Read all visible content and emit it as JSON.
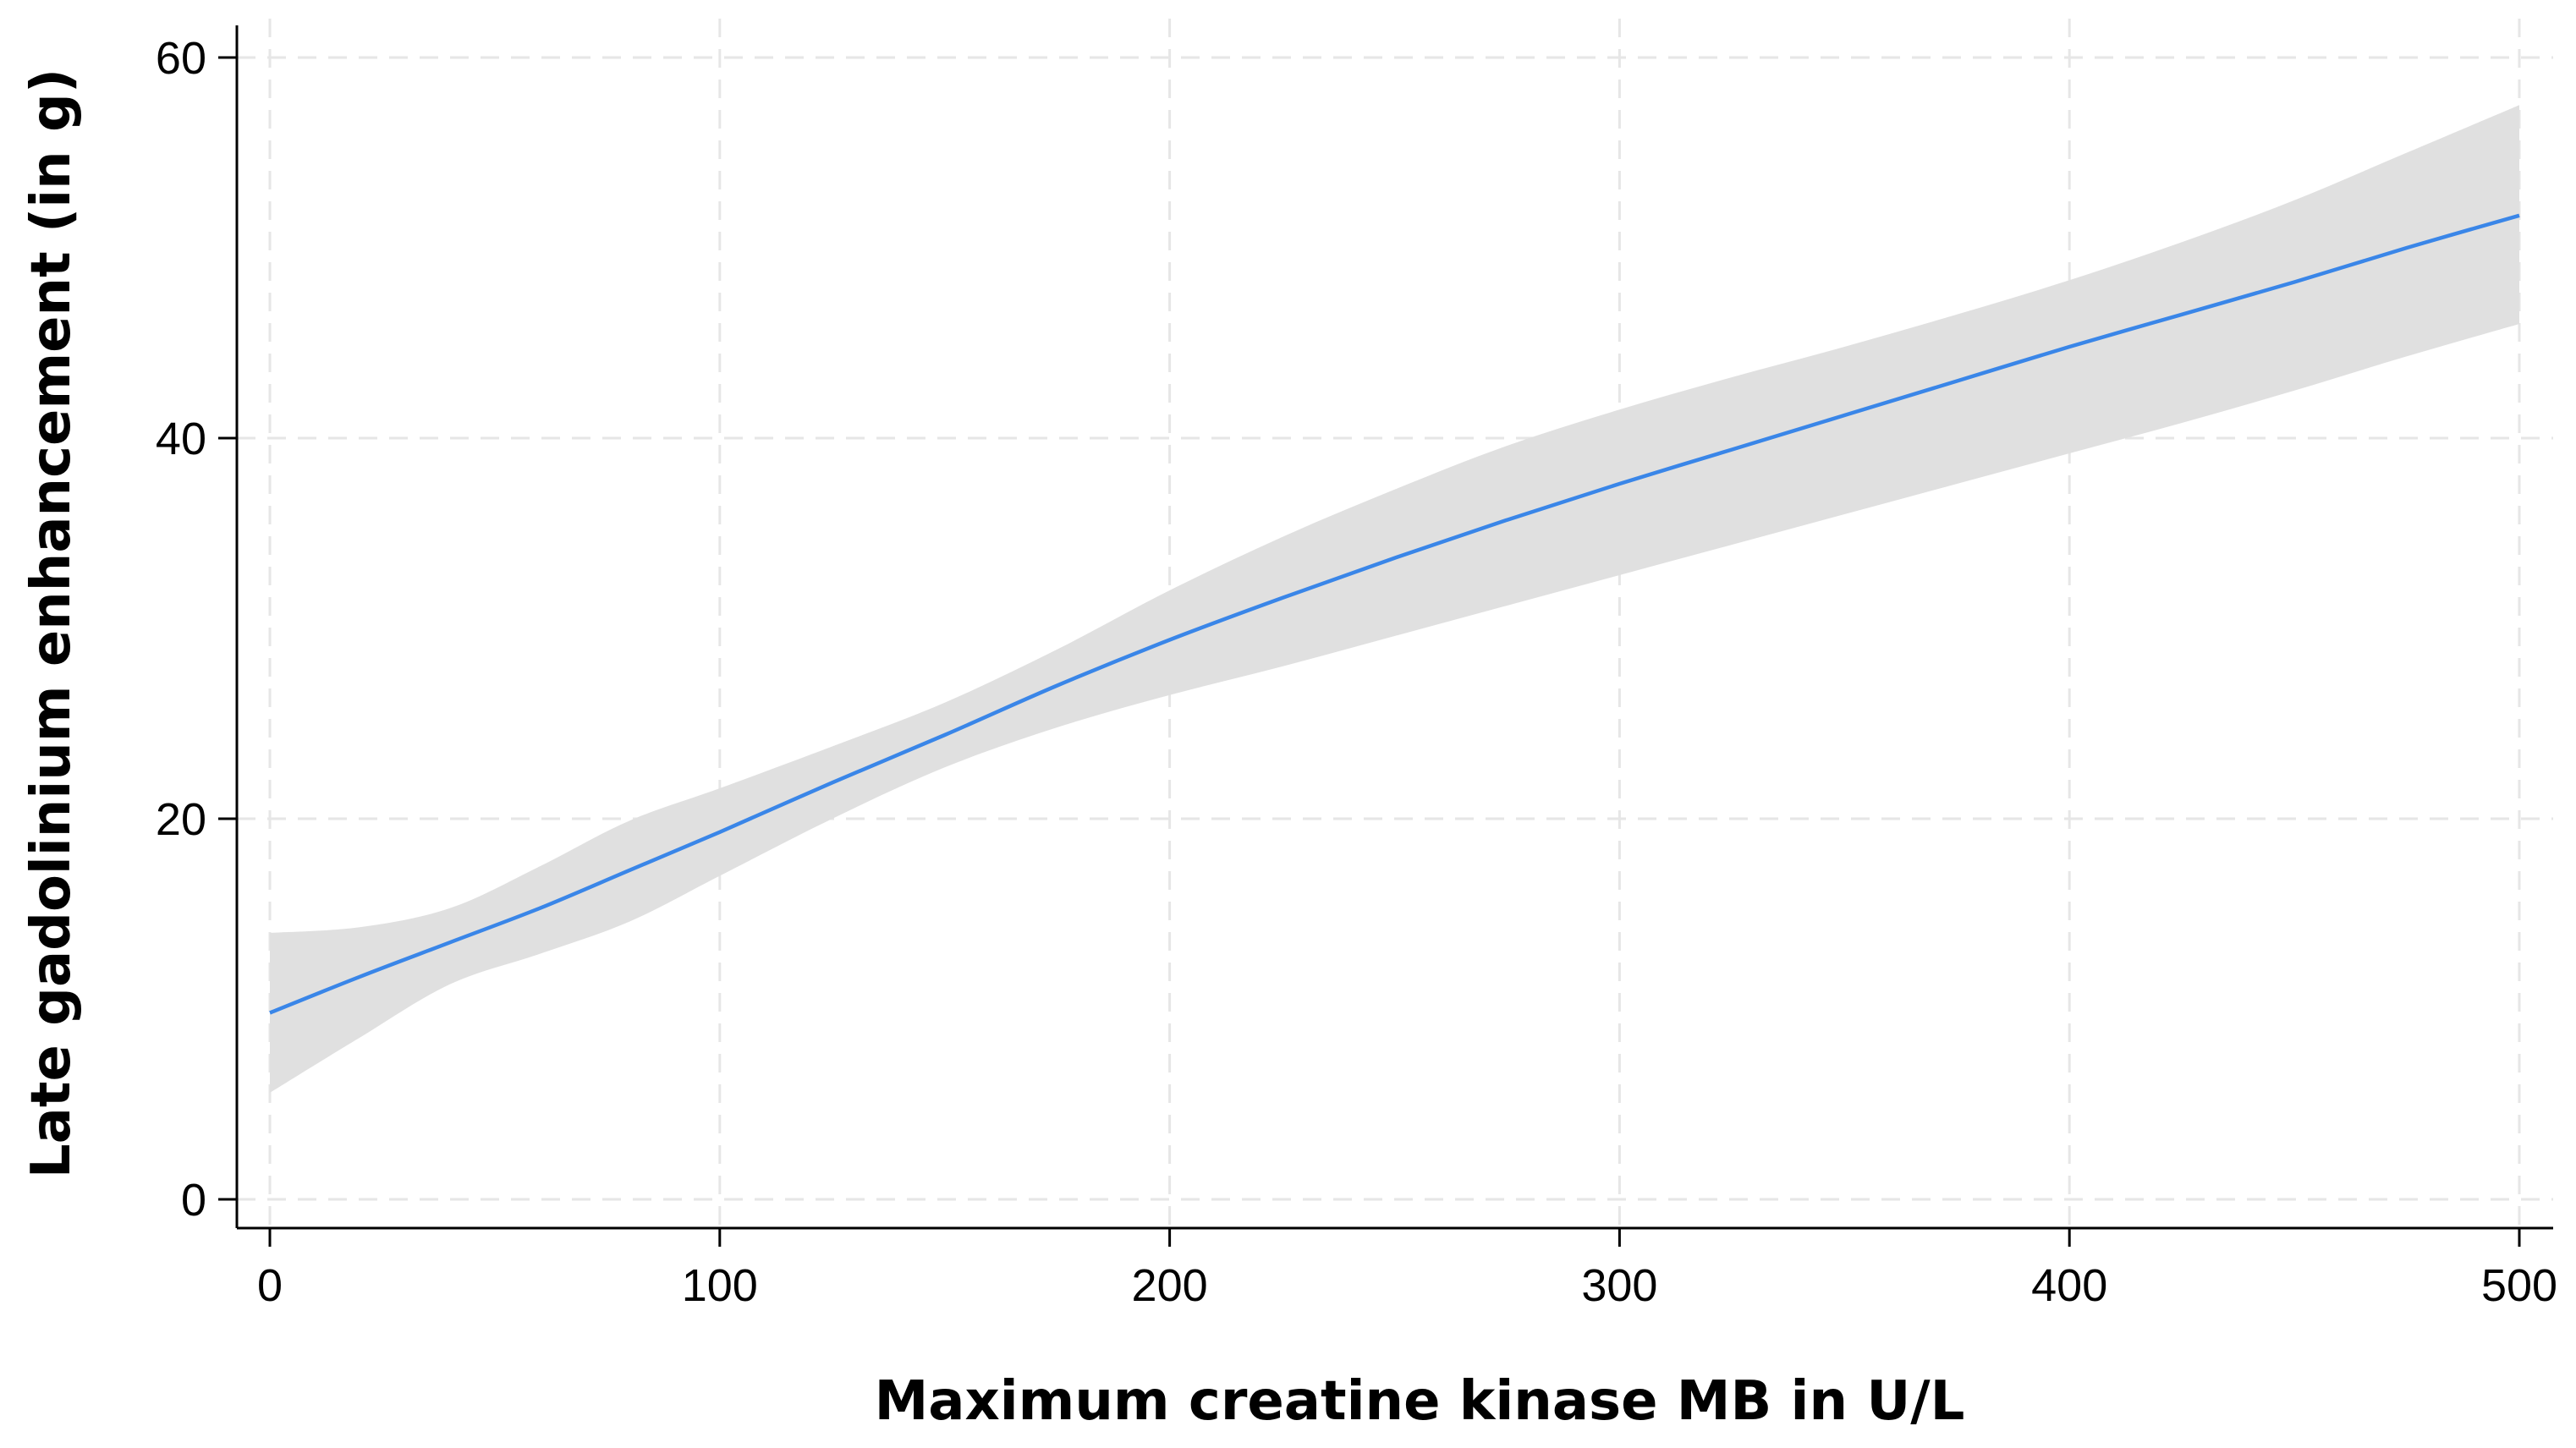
{
  "chart_data": {
    "type": "area",
    "title": "",
    "xlabel": "Maximum creatine kinase MB in U/L",
    "ylabel": "Late gadolinium enhancement (in g)",
    "xlim": [
      0,
      500
    ],
    "ylim": [
      0,
      60
    ],
    "xticks": [
      0,
      100,
      200,
      300,
      400,
      500
    ],
    "yticks": [
      0,
      20,
      40,
      60
    ],
    "grid": true,
    "legend": "none",
    "colors": {
      "line": "#3a86e8",
      "band": "#e0e0e0",
      "grid": "#e6e6e6",
      "axis": "#000000"
    },
    "series": [
      {
        "x": [
          0,
          20,
          40,
          60,
          80,
          100,
          125,
          150,
          175,
          200,
          225,
          250,
          275,
          300,
          325,
          350,
          375,
          400,
          425,
          450,
          475,
          500
        ],
        "fit": [
          9.8,
          11.7,
          13.5,
          15.3,
          17.3,
          19.3,
          21.9,
          24.4,
          27.0,
          29.4,
          31.6,
          33.7,
          35.7,
          37.6,
          39.4,
          41.2,
          43.0,
          44.8,
          46.5,
          48.2,
          50.0,
          51.7
        ],
        "lower": [
          5.6,
          8.5,
          11.3,
          12.9,
          14.6,
          17.0,
          20.0,
          22.7,
          24.8,
          26.5,
          28.0,
          29.6,
          31.2,
          32.8,
          34.4,
          36.0,
          37.6,
          39.2,
          40.8,
          42.5,
          44.3,
          46.0
        ],
        "upper": [
          14.0,
          14.3,
          15.3,
          17.5,
          19.9,
          21.6,
          23.8,
          26.1,
          28.9,
          32.0,
          34.8,
          37.3,
          39.6,
          41.5,
          43.2,
          44.8,
          46.5,
          48.3,
          50.3,
          52.5,
          55.0,
          57.5
        ]
      }
    ]
  }
}
